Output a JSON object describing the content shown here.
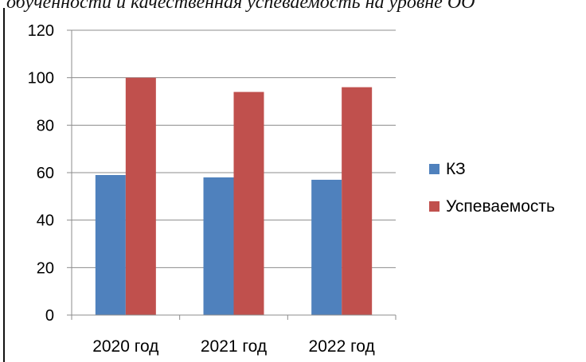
{
  "header": {
    "clipped_title": "обученности и качественная успеваемость на уровне ОО"
  },
  "chart_data": {
    "type": "bar",
    "categories": [
      "2020 год",
      "2021 год",
      "2022 год"
    ],
    "series": [
      {
        "name": "КЗ",
        "values": [
          59,
          58,
          57
        ],
        "color": "#4F81BD"
      },
      {
        "name": "Успеваемость",
        "values": [
          100,
          94,
          96
        ],
        "color": "#C0504D"
      }
    ],
    "ylim": [
      0,
      120
    ],
    "yticks": [
      0,
      20,
      40,
      60,
      80,
      100,
      120
    ],
    "grid": true,
    "legend_position": "right"
  }
}
